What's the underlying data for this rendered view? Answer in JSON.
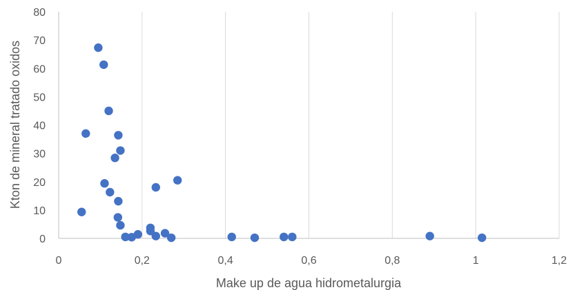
{
  "chart_data": {
    "type": "scatter",
    "title": "",
    "xlabel": "Make up de agua hidrometalurgia",
    "ylabel": "Kton de mineral tratado oxidos",
    "xlim": [
      0,
      1.2
    ],
    "ylim": [
      0,
      80
    ],
    "x_ticks": [
      "0",
      "0,2",
      "0,4",
      "0,6",
      "0,8",
      "1",
      "1,2"
    ],
    "y_ticks": [
      "0",
      "10",
      "20",
      "30",
      "40",
      "50",
      "60",
      "70",
      "80"
    ],
    "grid": "vertical",
    "marker_color": "#4472C4",
    "series": [
      {
        "points": [
          {
            "x": 0.055,
            "y": 9.3
          },
          {
            "x": 0.065,
            "y": 37.0
          },
          {
            "x": 0.095,
            "y": 67.3
          },
          {
            "x": 0.108,
            "y": 61.3
          },
          {
            "x": 0.11,
            "y": 19.4
          },
          {
            "x": 0.12,
            "y": 45.0
          },
          {
            "x": 0.123,
            "y": 16.3
          },
          {
            "x": 0.135,
            "y": 28.4
          },
          {
            "x": 0.143,
            "y": 36.4
          },
          {
            "x": 0.143,
            "y": 13.1
          },
          {
            "x": 0.142,
            "y": 7.4
          },
          {
            "x": 0.148,
            "y": 31.0
          },
          {
            "x": 0.148,
            "y": 4.6
          },
          {
            "x": 0.16,
            "y": 0.5
          },
          {
            "x": 0.175,
            "y": 0.4
          },
          {
            "x": 0.19,
            "y": 1.4
          },
          {
            "x": 0.22,
            "y": 3.7
          },
          {
            "x": 0.22,
            "y": 2.6
          },
          {
            "x": 0.233,
            "y": 18.0
          },
          {
            "x": 0.233,
            "y": 0.8
          },
          {
            "x": 0.255,
            "y": 1.8
          },
          {
            "x": 0.27,
            "y": 0.2
          },
          {
            "x": 0.285,
            "y": 20.5
          },
          {
            "x": 0.415,
            "y": 0.5
          },
          {
            "x": 0.47,
            "y": 0.2
          },
          {
            "x": 0.54,
            "y": 0.5
          },
          {
            "x": 0.56,
            "y": 0.5
          },
          {
            "x": 0.89,
            "y": 0.8
          },
          {
            "x": 1.015,
            "y": 0.2
          }
        ]
      }
    ]
  }
}
